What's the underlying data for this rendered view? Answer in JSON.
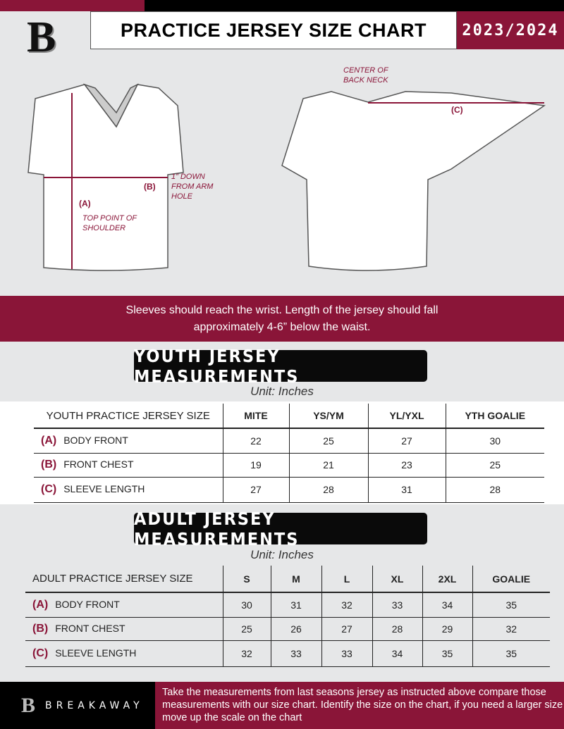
{
  "header": {
    "title": "PRACTICE JERSEY SIZE CHART",
    "season": "2023/2024",
    "logo_letter": "B"
  },
  "colors": {
    "accent": "#8a1538",
    "background": "#e6e7e8",
    "dark": "#000000"
  },
  "diagram": {
    "front_notes": {
      "a_label": "(A)",
      "a_note": "TOP POINT OF SHOULDER",
      "b_label": "(B)",
      "b_note": "1” DOWN FROM ARM HOLE"
    },
    "back_notes": {
      "c_label": "(C)",
      "c_note": "CENTER OF BACK NECK"
    }
  },
  "banner": {
    "line1": "Sleeves should reach the wrist. Length of the jersey should fall",
    "line2": "approximately 4-6” below the waist."
  },
  "youth": {
    "title": "YOUTH JERSEY MEASUREMENTS",
    "unit": "Unit: Inches",
    "header": [
      "YOUTH PRACTICE JERSEY SIZE",
      "MITE",
      "YS/YM",
      "YL/YXL",
      "YTH GOALIE"
    ],
    "rows": [
      {
        "key": "(A)",
        "label": "BODY FRONT",
        "values": [
          "22",
          "25",
          "27",
          "30"
        ]
      },
      {
        "key": "(B)",
        "label": "FRONT CHEST",
        "values": [
          "19",
          "21",
          "23",
          "25"
        ]
      },
      {
        "key": "(C)",
        "label": "SLEEVE LENGTH",
        "values": [
          "27",
          "28",
          "31",
          "28"
        ]
      }
    ]
  },
  "adult": {
    "title": "ADULT JERSEY MEASUREMENTS",
    "unit": "Unit: Inches",
    "header": [
      "ADULT PRACTICE JERSEY SIZE",
      "S",
      "M",
      "L",
      "XL",
      "2XL",
      "GOALIE"
    ],
    "rows": [
      {
        "key": "(A)",
        "label": "BODY FRONT",
        "values": [
          "30",
          "31",
          "32",
          "33",
          "34",
          "35"
        ]
      },
      {
        "key": "(B)",
        "label": "FRONT CHEST",
        "values": [
          "25",
          "26",
          "27",
          "28",
          "29",
          "32"
        ]
      },
      {
        "key": "(C)",
        "label": "SLEEVE LENGTH",
        "values": [
          "32",
          "33",
          "33",
          "34",
          "35",
          "35"
        ]
      }
    ]
  },
  "footer": {
    "brand": "BREAKAWAY",
    "text": "Take the measurements from last seasons jersey as instructed above compare those measurements  with our size chart. Identify the size on the chart, if you need a larger size move up the scale on the chart"
  }
}
